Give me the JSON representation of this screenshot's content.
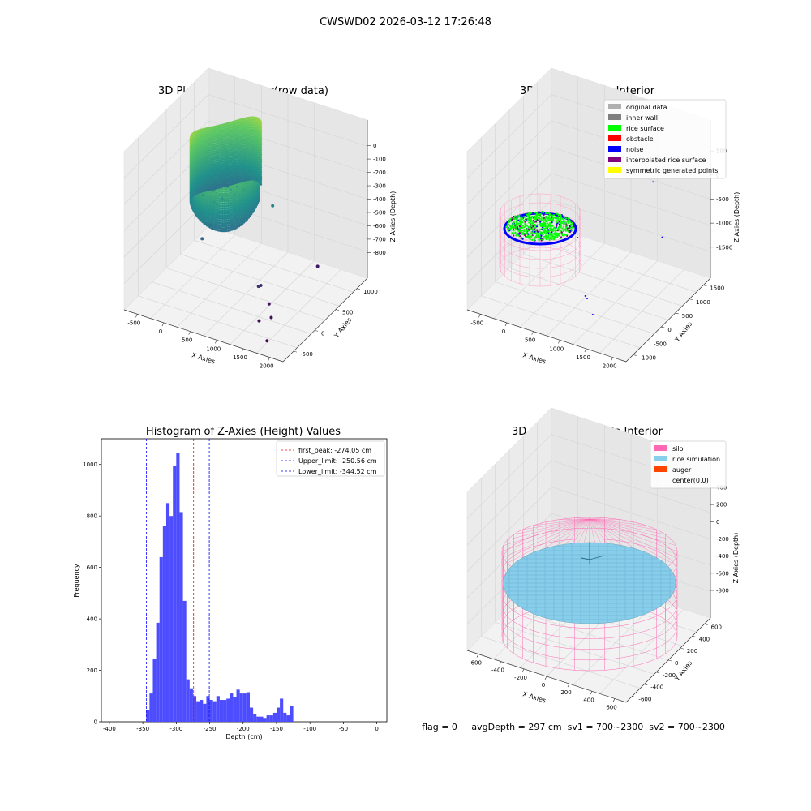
{
  "header": {
    "title": "CWSWD02 2026-03-12 17:26:48"
  },
  "footer": {
    "status": "flag = 0     avgDepth = 297 cm  sv1 = 700~2300  sv2 = 700~2300"
  },
  "chart_data": [
    {
      "type": "scatter",
      "title": "3D Plot of Silo Interior(row data)",
      "xlabel": "X Axies",
      "ylabel": "Y Axies",
      "zlabel": "Z Axies (Depth)",
      "x_ticks": [
        "-500",
        "0",
        "500",
        "1000",
        "1500",
        "2000"
      ],
      "y_ticks": [
        "-500",
        "0",
        "500",
        "1000"
      ],
      "z_ticks": [
        "0",
        "-100",
        "-200",
        "-300",
        "-400",
        "-500",
        "-600",
        "-700",
        "-800"
      ],
      "xlim": [
        -700,
        2300
      ],
      "ylim": [
        -700,
        1300
      ],
      "zlim": [
        -850,
        50
      ],
      "colormap": "viridis",
      "outliers": [
        {
          "x": 950,
          "y": 750,
          "z": -440
        },
        {
          "x": 150,
          "y": 200,
          "z": -490
        },
        {
          "x": 160,
          "y": 260,
          "z": -510
        },
        {
          "x": 120,
          "y": 120,
          "z": -560
        },
        {
          "x": 1600,
          "y": 1000,
          "z": -780
        },
        {
          "x": 1200,
          "y": 100,
          "z": -720
        },
        {
          "x": 1220,
          "y": 130,
          "z": -720
        },
        {
          "x": 1400,
          "y": 100,
          "z": -800
        },
        {
          "x": 1600,
          "y": -100,
          "z": -810
        },
        {
          "x": 1450,
          "y": -200,
          "z": -820
        },
        {
          "x": 1800,
          "y": -450,
          "z": -840
        }
      ]
    },
    {
      "type": "scatter",
      "title": "3D classify of Silo Interior",
      "xlabel": "X Axies",
      "ylabel": "Y Axies",
      "zlabel": "Z Axies (Depth)",
      "x_ticks": [
        "-500",
        "0",
        "500",
        "1000",
        "1500",
        "2000"
      ],
      "y_ticks": [
        "-1000",
        "-500",
        "0",
        "500",
        "1000",
        "1500"
      ],
      "z_ticks": [
        "500",
        "0",
        "-500",
        "-1000",
        "-1500"
      ],
      "xlim": [
        -700,
        2300
      ],
      "ylim": [
        -1100,
        1700
      ],
      "zlim": [
        -1700,
        900
      ],
      "legend": [
        {
          "name": "original data",
          "color": "#b0b0b0"
        },
        {
          "name": "inner wall",
          "color": "#808080"
        },
        {
          "name": "rice surface",
          "color": "#00ff00"
        },
        {
          "name": "obstacle",
          "color": "#ff0000"
        },
        {
          "name": "noise",
          "color": "#0000ff"
        },
        {
          "name": "interpolated rice surface",
          "color": "#800080"
        },
        {
          "name": "symmetric generated points",
          "color": "#ffff00"
        }
      ],
      "noise_points": [
        {
          "x": 1500,
          "y": 1200,
          "z": -100
        },
        {
          "x": 1900,
          "y": 800,
          "z": -700
        },
        {
          "x": 1300,
          "y": -700,
          "z": -1100
        },
        {
          "x": 1350,
          "y": -720,
          "z": -1120
        },
        {
          "x": 1500,
          "y": -800,
          "z": -1300
        },
        {
          "x": 700,
          "y": 100,
          "z": -700
        }
      ]
    },
    {
      "type": "bar",
      "title": "Histogram of Z-Axies (Height) Values",
      "xlabel": "Depth (cm)",
      "ylabel": "Frequency",
      "xlim": [
        -412,
        15
      ],
      "ylim": [
        0,
        1100
      ],
      "x_ticks": [
        -400,
        -350,
        -300,
        -250,
        -200,
        -150,
        -100,
        -50,
        0
      ],
      "y_ticks": [
        0,
        200,
        400,
        600,
        800,
        1000
      ],
      "bin_start": -345,
      "bin_width": 5,
      "values": [
        45,
        110,
        245,
        385,
        640,
        760,
        850,
        800,
        995,
        1045,
        815,
        470,
        165,
        130,
        100,
        80,
        85,
        70,
        100,
        85,
        80,
        100,
        85,
        85,
        90,
        110,
        95,
        125,
        110,
        110,
        115,
        55,
        30,
        20,
        20,
        15,
        25,
        25,
        35,
        55,
        90,
        35,
        25,
        60
      ],
      "bar_color": "#4d4dff",
      "legend_position": "top-right",
      "vlines": [
        {
          "label": "first_peak: -274.05 cm",
          "x": -274.05,
          "color": "#ff0000"
        },
        {
          "label": "Upper_limit: -250.56 cm",
          "x": -250.56,
          "color": "#0000ff"
        },
        {
          "label": "Lower_limit: -344.52 cm",
          "x": -344.52,
          "color": "#0000ff"
        }
      ]
    },
    {
      "type": "scatter",
      "title": "3D simulation of Silo Interior",
      "xlabel": "X Axies",
      "ylabel": "Y Axies",
      "zlabel": "Z Axies (Depth)",
      "x_ticks": [
        "-600",
        "-400",
        "-200",
        "0",
        "200",
        "400",
        "600"
      ],
      "y_ticks": [
        "-600",
        "-400",
        "-200",
        "0",
        "200",
        "400",
        "600"
      ],
      "z_ticks": [
        "400",
        "200",
        "0",
        "-200",
        "-400",
        "-600",
        "-800"
      ],
      "xlim": [
        -700,
        700
      ],
      "ylim": [
        -700,
        700
      ],
      "zlim": [
        -950,
        500
      ],
      "legend": [
        {
          "name": "silo",
          "color": "#ff69b4"
        },
        {
          "name": "rice simulation",
          "color": "#87ceeb"
        },
        {
          "name": "auger",
          "color": "#ff4500"
        },
        {
          "name": "center(0,0)",
          "color": ""
        }
      ]
    }
  ]
}
